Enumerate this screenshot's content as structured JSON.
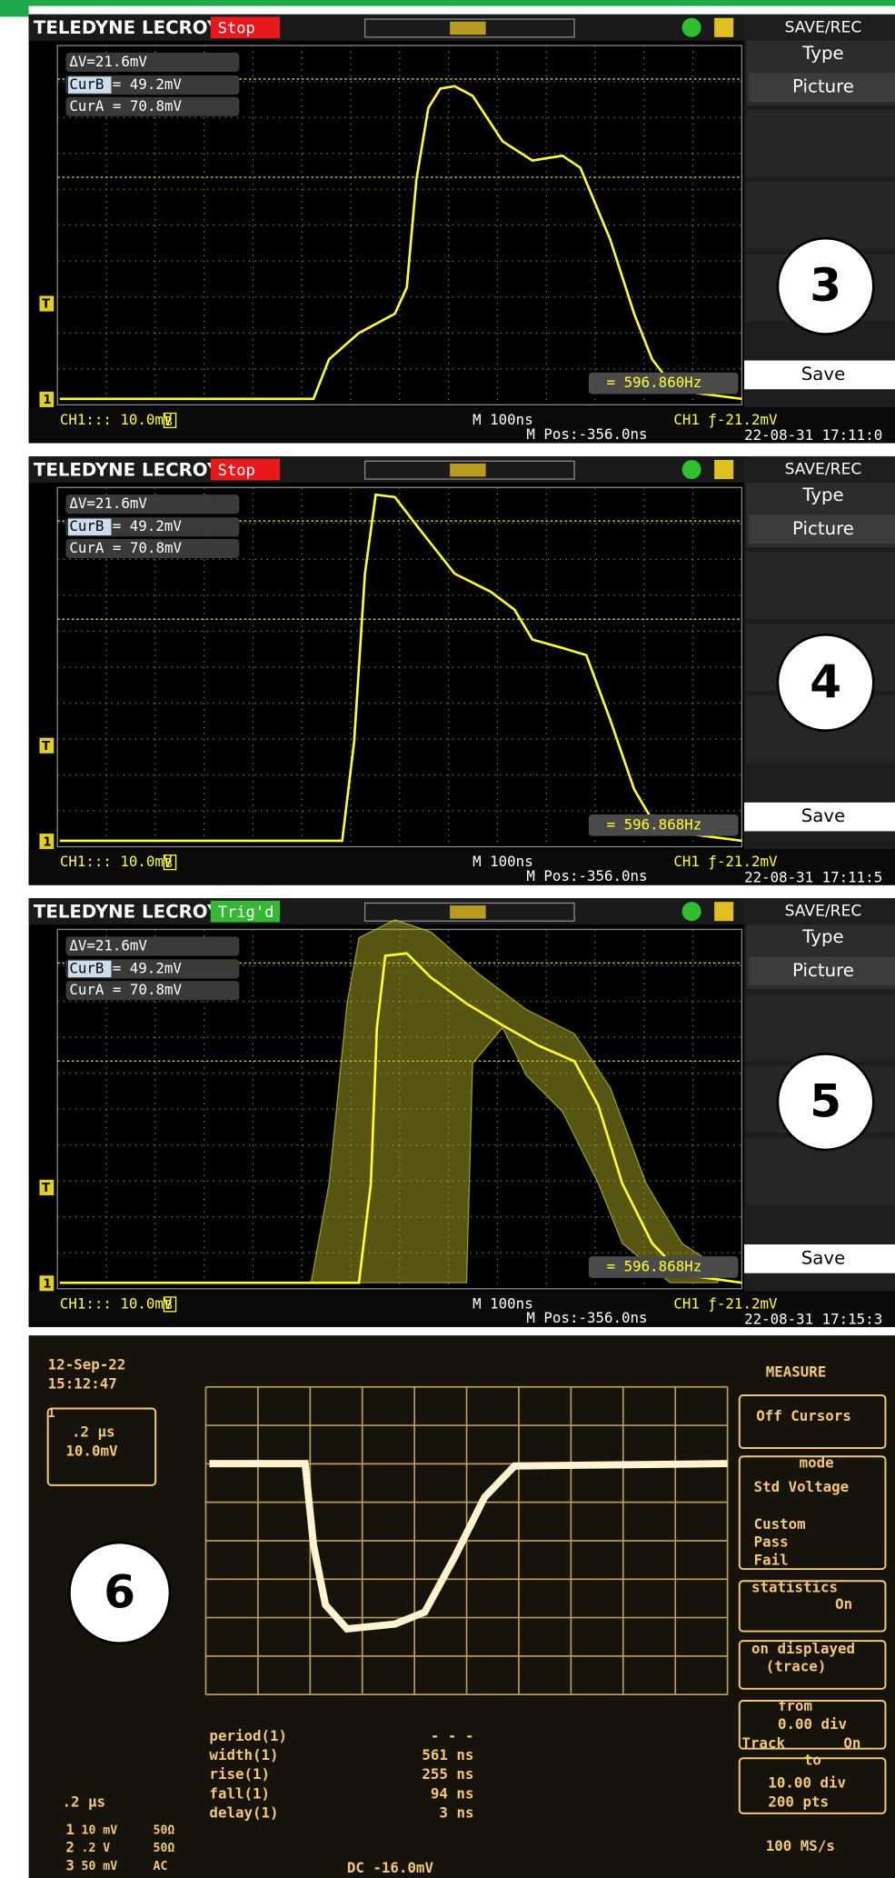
{
  "panels": [
    {
      "label": "3",
      "brand": "TELEDYNE LECROY",
      "status": "Stop",
      "status_color": "#e8191c",
      "menu_title": "SAVE/REC",
      "menu_type": "Type",
      "menu_picture": "Picture",
      "menu_save": "Save",
      "delta_v": "ΔV=21.6mV",
      "cur_b_label": "CurB",
      "cur_b_value": "= 49.2mV",
      "cur_a": "CurA = 70.8mV",
      "frequency": "= 596.860Hz",
      "trigger_marker": "T",
      "channel_marker": "1",
      "channel": "CH1::: 10.0mV",
      "bw_marker": "B",
      "timebase": "M 100ns",
      "position": "M Pos:-356.0ns",
      "trigger": "CH1 ƒ-21.2mV",
      "timestamp": "22-08-31 17:11:0"
    },
    {
      "label": "4",
      "brand": "TELEDYNE LECROY",
      "status": "Stop",
      "status_color": "#e8191c",
      "menu_title": "SAVE/REC",
      "menu_type": "Type",
      "menu_picture": "Picture",
      "menu_save": "Save",
      "delta_v": "ΔV=21.6mV",
      "cur_b_label": "CurB",
      "cur_b_value": "= 49.2mV",
      "cur_a": "CurA = 70.8mV",
      "frequency": "= 596.868Hz",
      "trigger_marker": "T",
      "channel_marker": "1",
      "channel": "CH1::: 10.0mV",
      "bw_marker": "B",
      "timebase": "M 100ns",
      "position": "M Pos:-356.0ns",
      "trigger": "CH1 ƒ-21.2mV",
      "timestamp": "22-08-31 17:11:5"
    },
    {
      "label": "5",
      "brand": "TELEDYNE LECROY",
      "status": "Trig'd",
      "status_color": "#36b836",
      "menu_title": "SAVE/REC",
      "menu_type": "Type",
      "menu_picture": "Picture",
      "menu_save": "Save",
      "delta_v": "ΔV=21.6mV",
      "cur_b_label": "CurB",
      "cur_b_value": "= 49.2mV",
      "cur_a": "CurA = 70.8mV",
      "frequency": "= 596.868Hz",
      "trigger_marker": "T",
      "channel_marker": "1",
      "channel": "CH1::: 10.0mV",
      "bw_marker": "B",
      "timebase": "M 100ns",
      "position": "M Pos:-356.0ns",
      "trigger": "CH1 ƒ-21.2mV",
      "timestamp": "22-08-31 17:15:3"
    }
  ],
  "scope6": {
    "label": "6",
    "date": "12-Sep-22",
    "time": "15:12:47",
    "channel_marker": "1",
    "timebase_box": ".2 µs",
    "volts_box": "10.0mV",
    "menu_title": "MEASURE",
    "off_cursors": "Off Cursors",
    "mode_title": "mode",
    "std_voltage": "Std Voltage",
    "custom": "Custom",
    "pass": "Pass",
    "fail": "Fail",
    "statistics_title": "statistics",
    "statistics_on": "On",
    "on_displayed": "on displayed",
    "trace": "(trace)",
    "from_title": "from",
    "from_value": "0.00 div",
    "track": "Track",
    "track_on": "On",
    "to_title": "to",
    "to_value": "10.00 div",
    "points": "200 pts",
    "sample_rate": "100 MS/s",
    "measurements": [
      {
        "name": "period(1)",
        "value": "- - -"
      },
      {
        "name": "width(1)",
        "value": "561 ns"
      },
      {
        "name": "rise(1)",
        "value": "255 ns"
      },
      {
        "name": "fall(1)",
        "value": "94 ns"
      },
      {
        "name": "delay(1)",
        "value": "3 ns"
      }
    ],
    "timebase": ".2 µs",
    "channels": [
      {
        "number": "1",
        "scale": "10 mV",
        "coupling": "50Ω"
      },
      {
        "number": "2",
        "scale": ".2 V",
        "coupling": "50Ω"
      },
      {
        "number": "3",
        "scale": "50 mV",
        "coupling": "AC"
      }
    ],
    "offset": "DC -16.0mV"
  }
}
